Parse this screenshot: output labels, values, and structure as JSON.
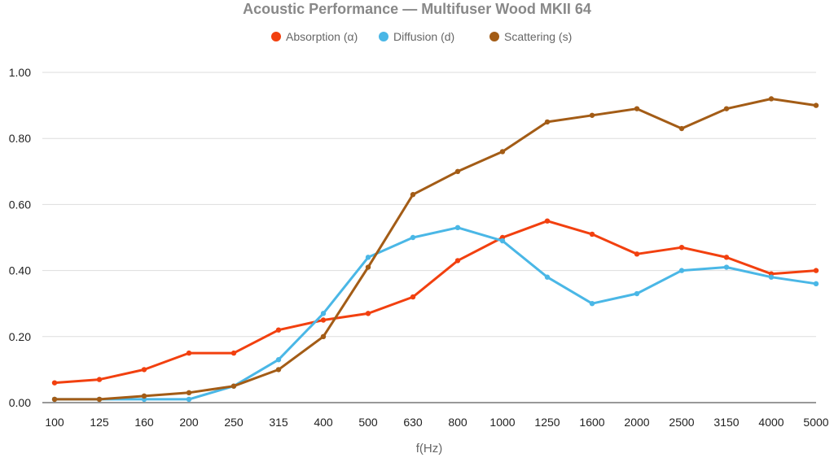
{
  "chart_data": {
    "type": "line",
    "title": "Acoustic Performance — Multifuser Wood MKII 64",
    "xlabel": "f(Hz)",
    "ylabel": "",
    "ylim": [
      0,
      1.0
    ],
    "yticks": [
      "0.00",
      "0.20",
      "0.40",
      "0.60",
      "0.80",
      "1.00"
    ],
    "grid": true,
    "legend_position": "top",
    "categories": [
      "100",
      "125",
      "160",
      "200",
      "250",
      "315",
      "400",
      "500",
      "630",
      "800",
      "1000",
      "1250",
      "1600",
      "2000",
      "2500",
      "3150",
      "4000",
      "5000"
    ],
    "series": [
      {
        "name": "Absorption (α)",
        "color": "#f2400f",
        "values": [
          0.06,
          0.07,
          0.1,
          0.15,
          0.15,
          0.22,
          0.25,
          0.27,
          0.32,
          0.43,
          0.5,
          0.55,
          0.51,
          0.45,
          0.47,
          0.44,
          0.39,
          0.4
        ]
      },
      {
        "name": "Diffusion (d)",
        "color": "#4ab7e6",
        "values": [
          0.01,
          0.01,
          0.01,
          0.01,
          0.05,
          0.13,
          0.27,
          0.44,
          0.5,
          0.53,
          0.49,
          0.38,
          0.3,
          0.33,
          0.4,
          0.41,
          0.38,
          0.36
        ]
      },
      {
        "name": "Scattering (s)",
        "color": "#a35c16",
        "values": [
          0.01,
          0.01,
          0.02,
          0.03,
          0.05,
          0.1,
          0.2,
          0.41,
          0.63,
          0.7,
          0.76,
          0.85,
          0.87,
          0.89,
          0.83,
          0.89,
          0.92,
          0.9
        ]
      }
    ]
  }
}
